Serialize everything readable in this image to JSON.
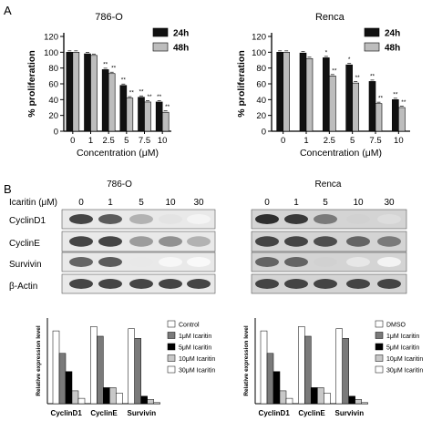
{
  "panels": {
    "a": "A",
    "b": "B"
  },
  "chart_data": [
    {
      "type": "bar",
      "title": "786-O",
      "categories": [
        "0",
        "1",
        "2.5",
        "5",
        "7.5",
        "10"
      ],
      "xlabel": "Concentration (μM)",
      "ylabel": "% proliferation",
      "ylim": [
        0,
        120
      ],
      "yticks": [
        "0",
        "20",
        "40",
        "60",
        "80",
        "100",
        "120"
      ],
      "legend": "top-right",
      "series": [
        {
          "name": "24h",
          "color": "#111111",
          "values": [
            100,
            98,
            78,
            58,
            43,
            37
          ],
          "sig": [
            "",
            "",
            "**",
            "**",
            "**",
            "**"
          ]
        },
        {
          "name": "48h",
          "color": "#bdbdbd",
          "values": [
            100,
            96,
            73,
            42,
            37,
            24
          ],
          "sig": [
            "",
            "",
            "**",
            "**",
            "**",
            "**"
          ]
        }
      ]
    },
    {
      "type": "bar",
      "title": "Renca",
      "categories": [
        "0",
        "1",
        "2.5",
        "5",
        "7.5",
        "10"
      ],
      "xlabel": "Concentration (μM)",
      "ylabel": "% proliferation",
      "ylim": [
        0,
        120
      ],
      "yticks": [
        "0",
        "20",
        "40",
        "60",
        "80",
        "100",
        "120"
      ],
      "legend": "top-right",
      "series": [
        {
          "name": "24h",
          "color": "#111111",
          "values": [
            100,
            99,
            93,
            84,
            63,
            40
          ],
          "sig": [
            "",
            "",
            "*",
            "*",
            "**",
            "**"
          ]
        },
        {
          "name": "48h",
          "color": "#bdbdbd",
          "values": [
            100,
            92,
            70,
            61,
            35,
            30
          ],
          "sig": [
            "",
            "",
            "**",
            "**",
            "**",
            "**"
          ]
        }
      ]
    },
    {
      "type": "bar",
      "categories": [
        "CyclinD1",
        "CyclinE",
        "Survivin"
      ],
      "ylabel": "Relative expression level",
      "legend": "right",
      "series": [
        {
          "name": "Control",
          "color": "#ffffff",
          "values": [
            0.68,
            0.72,
            0.7
          ]
        },
        {
          "name": "1μM Icaritin",
          "color": "#7a7a7a",
          "values": [
            0.47,
            0.63,
            0.61
          ]
        },
        {
          "name": "5μM Icaritin",
          "color": "#000000",
          "values": [
            0.3,
            0.15,
            0.07
          ]
        },
        {
          "name": "10μM Icaritin",
          "color": "#c8c8c8",
          "values": [
            0.12,
            0.15,
            0.04
          ]
        },
        {
          "name": "30μM Icaritin",
          "color": "#ffffff",
          "values": [
            0.05,
            0.1,
            0.01
          ]
        }
      ]
    },
    {
      "type": "bar",
      "categories": [
        "CyclinD1",
        "CyclinE",
        "Survivin"
      ],
      "ylabel": "Relative expression level",
      "legend": "right",
      "series": [
        {
          "name": "DMSO",
          "color": "#ffffff",
          "values": [
            0.68,
            0.72,
            0.7
          ]
        },
        {
          "name": "1μM Icaritin",
          "color": "#7a7a7a",
          "values": [
            0.47,
            0.63,
            0.61
          ]
        },
        {
          "name": "5μM Icaritin",
          "color": "#000000",
          "values": [
            0.3,
            0.15,
            0.07
          ]
        },
        {
          "name": "10μM Icaritin",
          "color": "#c8c8c8",
          "values": [
            0.12,
            0.15,
            0.04
          ]
        },
        {
          "name": "30μM Icaritin",
          "color": "#ffffff",
          "values": [
            0.05,
            0.1,
            0.01
          ]
        }
      ]
    }
  ],
  "blot": {
    "titles": [
      "786-O",
      "Renca"
    ],
    "dose_label": "Icaritin (μM)",
    "doses": [
      "0",
      "1",
      "5",
      "10",
      "30"
    ],
    "proteins": [
      "CyclinD1",
      "CyclinE",
      "Survivin",
      "β-Actin"
    ]
  }
}
